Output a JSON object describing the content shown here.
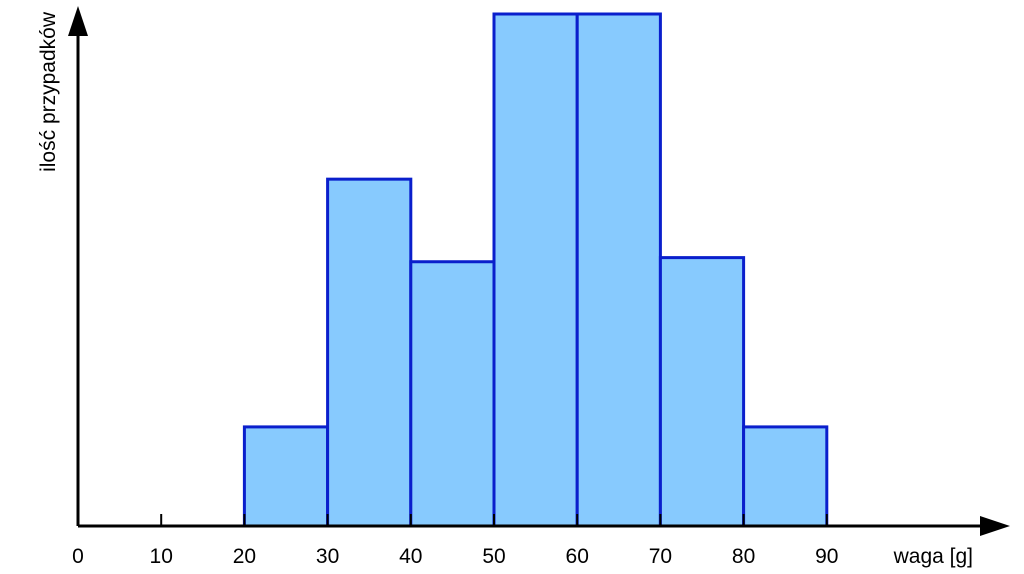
{
  "chart_data": {
    "type": "bar",
    "title": "",
    "xlabel": "waga [g]",
    "ylabel": "ilość przypadków",
    "x_ticks": [
      0,
      10,
      20,
      30,
      40,
      50,
      60,
      70,
      80,
      90
    ],
    "bins": [
      {
        "from": 20,
        "to": 30,
        "value": 1.2
      },
      {
        "from": 30,
        "to": 40,
        "value": 4.2
      },
      {
        "from": 40,
        "to": 50,
        "value": 3.2
      },
      {
        "from": 50,
        "to": 60,
        "value": 6.2
      },
      {
        "from": 60,
        "to": 70,
        "value": 6.2
      },
      {
        "from": 70,
        "to": 80,
        "value": 3.25
      },
      {
        "from": 80,
        "to": 90,
        "value": 1.2
      }
    ],
    "xlim": [
      0,
      100
    ],
    "ylim": [
      0,
      6.2
    ],
    "y_ticks_shown": false,
    "grid": false,
    "bar_fill": "#87CAFE",
    "bar_stroke": "#0A1FCC",
    "axis_color": "#000000"
  }
}
